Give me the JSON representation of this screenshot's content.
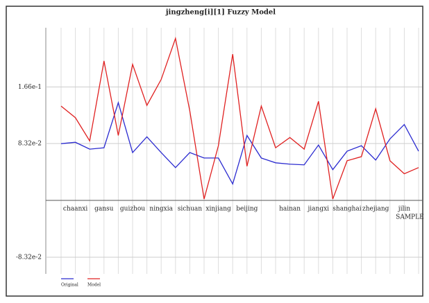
{
  "chart_data": {
    "type": "line",
    "title": "jingzheng[i][1] Fuzzy Model",
    "x_label": "SAMPLE",
    "categories": [
      null,
      "chaanxi",
      null,
      "gansu",
      null,
      "guizhou",
      null,
      "ningxia",
      null,
      "sichuan",
      null,
      "xinjiang",
      null,
      "beijing",
      null,
      null,
      "hainan",
      null,
      "jiangxi",
      null,
      "shanghai",
      null,
      "zhejiang",
      null,
      "jilin",
      null
    ],
    "series": [
      {
        "name": "Original",
        "color": "#2b2bd0",
        "values": [
          0.083,
          0.085,
          0.075,
          0.077,
          0.143,
          0.07,
          0.093,
          0.07,
          0.048,
          0.07,
          0.062,
          0.062,
          0.024,
          0.095,
          0.062,
          0.055,
          0.053,
          0.052,
          0.081,
          0.045,
          0.072,
          0.08,
          0.059,
          0.09,
          0.111,
          0.072
        ]
      },
      {
        "name": "Model",
        "color": "#e02020",
        "values": [
          0.138,
          0.121,
          0.087,
          0.204,
          0.095,
          0.199,
          0.139,
          0.177,
          0.237,
          0.131,
          0.002,
          0.08,
          0.214,
          0.05,
          0.138,
          0.077,
          0.092,
          0.075,
          0.145,
          0.002,
          0.058,
          0.064,
          0.134,
          0.058,
          0.039,
          0.048
        ]
      }
    ],
    "ylim": [
      -0.1075,
      0.2526
    ],
    "yticks": [
      {
        "value": -0.0832,
        "label": "-8.32e-2"
      },
      {
        "value": 0.0832,
        "label": "8.32e-2"
      },
      {
        "value": 0.166,
        "label": "1.66e-1"
      }
    ],
    "grid": true,
    "legend": "bottom-left"
  }
}
